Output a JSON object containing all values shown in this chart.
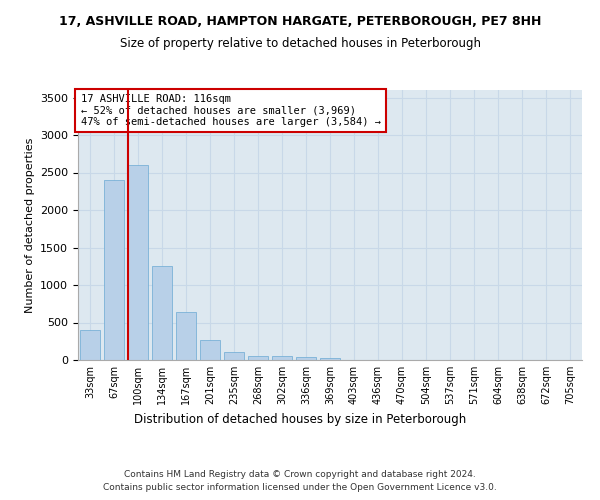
{
  "title_line1": "17, ASHVILLE ROAD, HAMPTON HARGATE, PETERBOROUGH, PE7 8HH",
  "title_line2": "Size of property relative to detached houses in Peterborough",
  "xlabel": "Distribution of detached houses by size in Peterborough",
  "ylabel": "Number of detached properties",
  "categories": [
    "33sqm",
    "67sqm",
    "100sqm",
    "134sqm",
    "167sqm",
    "201sqm",
    "235sqm",
    "268sqm",
    "302sqm",
    "336sqm",
    "369sqm",
    "403sqm",
    "436sqm",
    "470sqm",
    "504sqm",
    "537sqm",
    "571sqm",
    "604sqm",
    "638sqm",
    "672sqm",
    "705sqm"
  ],
  "values": [
    400,
    2400,
    2600,
    1260,
    640,
    270,
    110,
    60,
    50,
    35,
    25,
    0,
    0,
    0,
    0,
    0,
    0,
    0,
    0,
    0,
    0
  ],
  "bar_color": "#b8d0e8",
  "bar_edge_color": "#6aaad4",
  "vline_color": "#cc0000",
  "annotation_text": "17 ASHVILLE ROAD: 116sqm\n← 52% of detached houses are smaller (3,969)\n47% of semi-detached houses are larger (3,584) →",
  "annotation_box_color": "#ffffff",
  "annotation_box_edge": "#cc0000",
  "ylim": [
    0,
    3600
  ],
  "yticks": [
    0,
    500,
    1000,
    1500,
    2000,
    2500,
    3000,
    3500
  ],
  "grid_color": "#c8d8e8",
  "bg_color": "#dde8f0",
  "footer_line1": "Contains HM Land Registry data © Crown copyright and database right 2024.",
  "footer_line2": "Contains public sector information licensed under the Open Government Licence v3.0."
}
